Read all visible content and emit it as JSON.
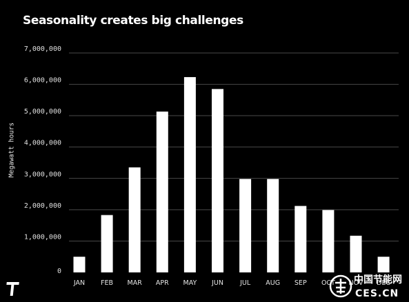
{
  "chart_data": {
    "type": "bar",
    "title": "Seasonality creates big challenges",
    "xlabel": "",
    "ylabel": "Megawatt hours",
    "categories": [
      "JAN",
      "FEB",
      "MAR",
      "APR",
      "MAY",
      "JUN",
      "JUL",
      "AUG",
      "SEP",
      "OCT",
      "NOV",
      "DEC"
    ],
    "values": [
      500000,
      1830000,
      3350000,
      5130000,
      6230000,
      5850000,
      2980000,
      2980000,
      2120000,
      1990000,
      1170000,
      500000
    ],
    "ylim": [
      0,
      7000000
    ],
    "yticks": [
      0,
      1000000,
      2000000,
      3000000,
      4000000,
      5000000,
      6000000,
      7000000
    ],
    "ytick_labels": [
      "0",
      "1,000,000",
      "2,000,000",
      "3,000,000",
      "4,000,000",
      "5,000,000",
      "6,000,000",
      "7,000,000"
    ],
    "grid": true,
    "colors": {
      "background": "#000000",
      "bar": "#ffffff",
      "grid": "#4a4a4a",
      "text": "#ffffff"
    }
  },
  "brand": {
    "logo_icon": "t-logo-icon",
    "watermark_icon": "ces-watermark-icon",
    "watermark_text": "中国节能网",
    "watermark_subtext": "CES.CN"
  }
}
